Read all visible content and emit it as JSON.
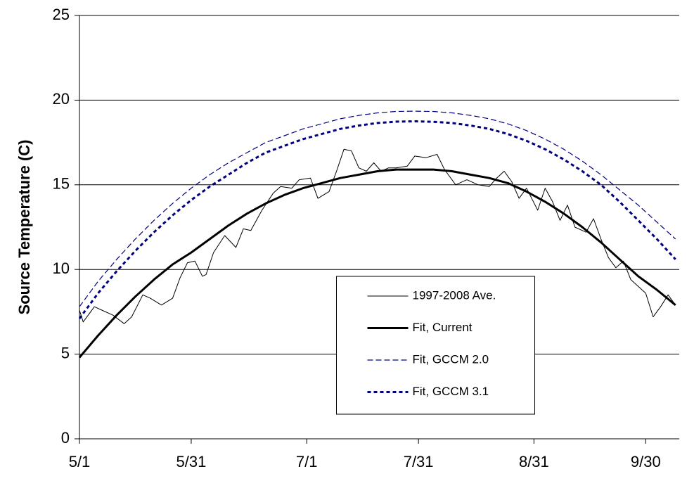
{
  "chart_data": {
    "type": "line",
    "y_label": "Source Temperature (C)",
    "xlim": [
      121,
      282
    ],
    "xticks": [
      {
        "value": 121,
        "label": "5/1"
      },
      {
        "value": 151,
        "label": "5/31"
      },
      {
        "value": 182,
        "label": "7/1"
      },
      {
        "value": 212,
        "label": "7/31"
      },
      {
        "value": 243,
        "label": "8/31"
      },
      {
        "value": 273,
        "label": "9/30"
      }
    ],
    "ylim": [
      0,
      25
    ],
    "yticks": [
      0,
      5,
      10,
      15,
      20,
      25
    ],
    "grid": true,
    "legend": "lower center",
    "series": [
      {
        "name": "1997-2008 Ave.",
        "color": "#000000",
        "linewidth": 1,
        "linestyle": "solid",
        "x": [
          121,
          122,
          125,
          127,
          130,
          133,
          135,
          138,
          140,
          143,
          146,
          148,
          150,
          152,
          154,
          155,
          157,
          160,
          163,
          165,
          167,
          170,
          173,
          175,
          178,
          180,
          183,
          185,
          188,
          190,
          192,
          194,
          196,
          198,
          200,
          202,
          204,
          206,
          209,
          211,
          214,
          217,
          219,
          222,
          225,
          228,
          231,
          233,
          235,
          237,
          239,
          241,
          244,
          246,
          248,
          250,
          252,
          254,
          257,
          259,
          261,
          263,
          265,
          267,
          269,
          271,
          273,
          275,
          277,
          279,
          281
        ],
        "values": [
          7.6,
          6.9,
          7.8,
          7.6,
          7.3,
          6.8,
          7.2,
          8.5,
          8.3,
          7.9,
          8.3,
          9.5,
          10.4,
          10.5,
          9.6,
          9.7,
          11.0,
          12.0,
          11.3,
          12.4,
          12.3,
          13.5,
          14.5,
          14.9,
          14.8,
          15.3,
          15.4,
          14.2,
          14.6,
          15.8,
          17.1,
          17.0,
          16.0,
          15.8,
          16.3,
          15.8,
          16.0,
          16.0,
          16.1,
          16.7,
          16.6,
          16.8,
          15.9,
          15.0,
          15.3,
          15.0,
          14.9,
          15.4,
          15.8,
          15.2,
          14.2,
          14.8,
          13.5,
          14.8,
          14.0,
          12.9,
          13.8,
          12.5,
          12.2,
          13.0,
          11.8,
          10.7,
          10.1,
          10.5,
          9.4,
          9.0,
          8.6,
          7.2,
          7.8,
          8.5,
          7.9
        ]
      },
      {
        "name": "Fit, Current",
        "color": "#000000",
        "linewidth": 3,
        "linestyle": "solid",
        "x": [
          121,
          126,
          131,
          136,
          141,
          146,
          151,
          156,
          161,
          166,
          171,
          176,
          181,
          186,
          191,
          196,
          201,
          206,
          211,
          216,
          221,
          226,
          231,
          236,
          241,
          246,
          251,
          256,
          261,
          266,
          271,
          276,
          281
        ],
        "values": [
          4.8,
          6.1,
          7.3,
          8.4,
          9.4,
          10.3,
          11.0,
          11.8,
          12.6,
          13.3,
          13.9,
          14.4,
          14.8,
          15.1,
          15.4,
          15.6,
          15.8,
          15.9,
          15.9,
          15.9,
          15.8,
          15.6,
          15.4,
          15.1,
          14.6,
          14.0,
          13.3,
          12.5,
          11.6,
          10.6,
          9.6,
          8.8,
          7.9
        ]
      },
      {
        "name": "Fit, GCCM 2.0",
        "color": "#000080",
        "linewidth": 1.2,
        "linestyle": "dashed",
        "x": [
          121,
          126,
          131,
          136,
          141,
          146,
          151,
          156,
          161,
          166,
          171,
          176,
          181,
          186,
          191,
          196,
          201,
          206,
          211,
          216,
          221,
          226,
          231,
          236,
          241,
          246,
          251,
          256,
          261,
          266,
          271,
          276,
          281
        ],
        "values": [
          7.8,
          9.3,
          10.6,
          11.8,
          12.9,
          13.9,
          14.8,
          15.6,
          16.3,
          16.9,
          17.5,
          17.9,
          18.3,
          18.6,
          18.9,
          19.1,
          19.25,
          19.33,
          19.35,
          19.33,
          19.25,
          19.1,
          18.9,
          18.6,
          18.2,
          17.7,
          17.1,
          16.4,
          15.6,
          14.7,
          13.8,
          12.8,
          11.8
        ]
      },
      {
        "name": "Fit, GCCM 3.1",
        "color": "#000080",
        "linewidth": 3,
        "linestyle": "dotted",
        "x": [
          121,
          126,
          131,
          136,
          141,
          146,
          151,
          156,
          161,
          166,
          171,
          176,
          181,
          186,
          191,
          196,
          201,
          206,
          211,
          216,
          221,
          226,
          231,
          236,
          241,
          246,
          251,
          256,
          261,
          266,
          271,
          276,
          281
        ],
        "values": [
          7.1,
          8.6,
          9.9,
          11.1,
          12.2,
          13.2,
          14.1,
          14.9,
          15.6,
          16.3,
          16.9,
          17.3,
          17.7,
          18.0,
          18.3,
          18.5,
          18.65,
          18.73,
          18.75,
          18.72,
          18.65,
          18.5,
          18.3,
          18.0,
          17.6,
          17.1,
          16.5,
          15.8,
          15.0,
          14.0,
          12.9,
          11.8,
          10.6
        ]
      }
    ]
  }
}
